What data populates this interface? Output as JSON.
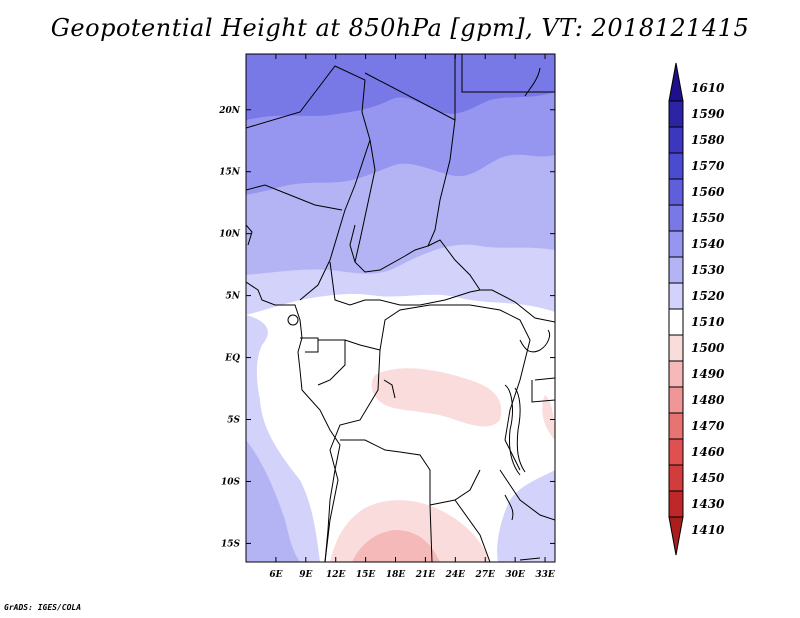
{
  "title": "Geopotential Height at 850hPa [gpm], VT: 2018121415",
  "credit": "GrADS: IGES/COLA",
  "map": {
    "lon_range": [
      3,
      34
    ],
    "lat_range": [
      -16.5,
      24.5
    ],
    "lon_ticks": [
      "6E",
      "9E",
      "12E",
      "15E",
      "18E",
      "21E",
      "24E",
      "27E",
      "30E",
      "33E"
    ],
    "lat_ticks": [
      "20N",
      "15N",
      "10N",
      "5N",
      "EQ",
      "5S",
      "10S",
      "15S"
    ]
  },
  "colorbar": {
    "levels": [
      "1610",
      "1590",
      "1580",
      "1570",
      "1560",
      "1550",
      "1540",
      "1530",
      "1520",
      "1510",
      "1500",
      "1490",
      "1480",
      "1470",
      "1460",
      "1450",
      "1430",
      "1410"
    ],
    "colors": [
      "#1e0f8c",
      "#2d23a5",
      "#3c37be",
      "#4b4bd2",
      "#5f5fdc",
      "#7878e6",
      "#9696f0",
      "#b4b4f5",
      "#d2d2fa",
      "#ffffff",
      "#fadcdc",
      "#f5b9b9",
      "#f09696",
      "#e87373",
      "#e05050",
      "#d23c3c",
      "#be2828",
      "#aa1e1e"
    ]
  }
}
